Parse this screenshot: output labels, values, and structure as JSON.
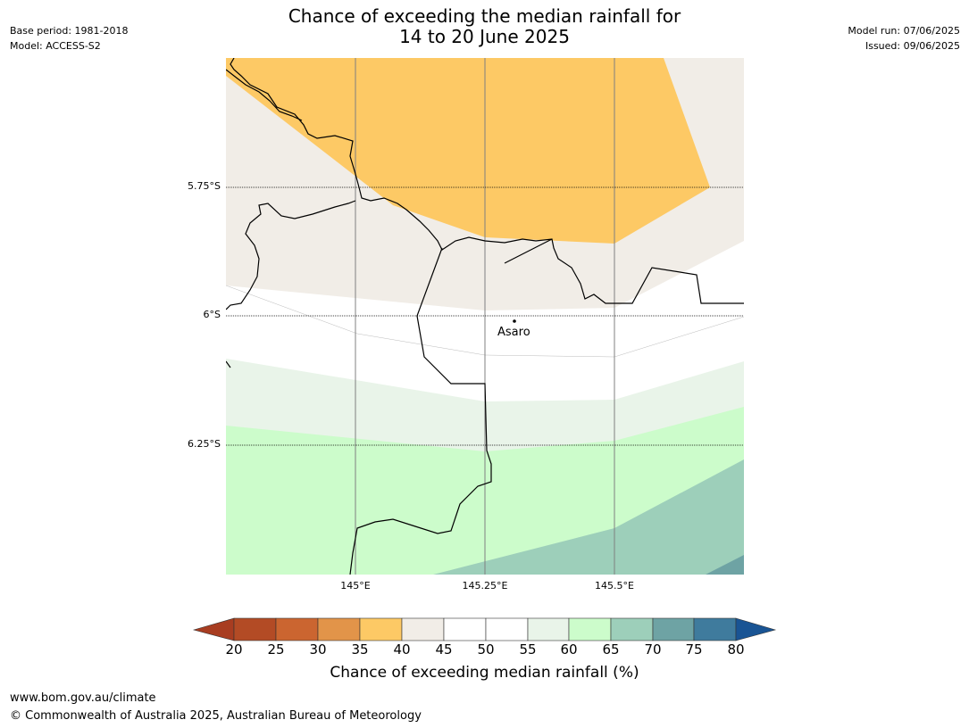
{
  "header": {
    "base_period": "Base period: 1981-2018",
    "model": "Model: ACCESS-S2",
    "model_run": "Model run: 07/06/2025",
    "issued": "Issued: 09/06/2025"
  },
  "title": {
    "line1": "Chance of exceeding the median rainfall for",
    "line2": "14 to 20 June 2025"
  },
  "map": {
    "lat_labels": [
      "5.75°S",
      "6°S",
      "6.25°S"
    ],
    "lon_labels": [
      "145°E",
      "145.25°E",
      "145.5°E"
    ],
    "place": "Asaro"
  },
  "colorbar": {
    "title": "Chance of exceeding median rainfall (%)",
    "ticks": [
      "20",
      "25",
      "30",
      "35",
      "40",
      "45",
      "50",
      "55",
      "60",
      "65",
      "70",
      "75",
      "80"
    ],
    "colors": [
      "#a83d21",
      "#b34b25",
      "#cb6530",
      "#e29449",
      "#fdc965",
      "#f1ede7",
      "#ffffff",
      "#ffffff",
      "#e9f4e9",
      "#ccfccb",
      "#9dcfba",
      "#6ea3a4",
      "#3f7b9d",
      "#195494"
    ]
  },
  "footer": {
    "url": "www.bom.gov.au/climate",
    "copyright": "© Commonwealth of Australia 2025, Australian Bureau of Meteorology"
  }
}
